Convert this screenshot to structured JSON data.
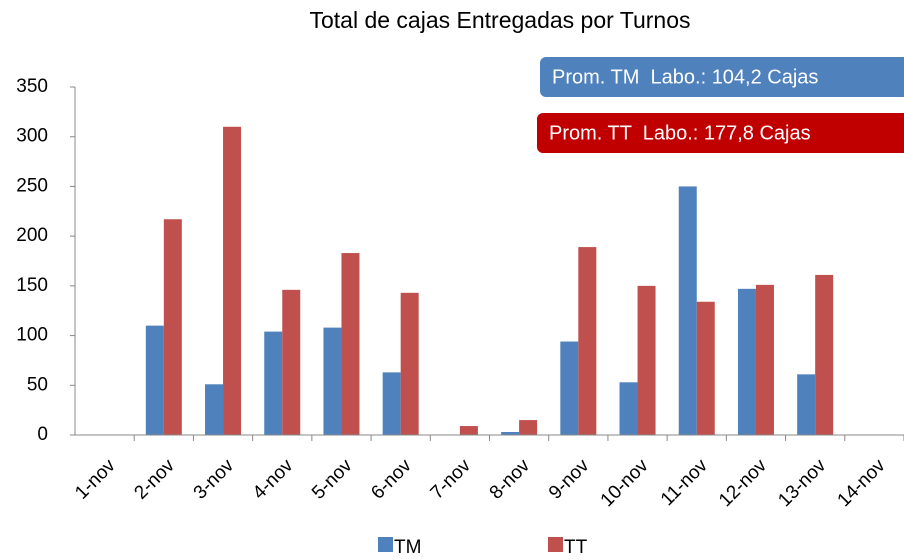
{
  "chart_data": {
    "type": "bar",
    "title": "Total de cajas Entregadas por Turnos",
    "categories": [
      "1-nov",
      "2-nov",
      "3-nov",
      "4-nov",
      "5-nov",
      "6-nov",
      "7-nov",
      "8-nov",
      "9-nov",
      "10-nov",
      "11-nov",
      "12-nov",
      "13-nov",
      "14-nov"
    ],
    "series": [
      {
        "name": "TM",
        "color": "#4f81bd",
        "values": [
          0,
          110,
          51,
          104,
          108,
          63,
          0,
          3,
          94,
          53,
          250,
          147,
          61,
          0
        ]
      },
      {
        "name": "TT",
        "color": "#c0504d",
        "values": [
          0,
          217,
          310,
          146,
          183,
          143,
          9,
          15,
          189,
          150,
          134,
          151,
          161,
          0
        ]
      }
    ],
    "ylim": [
      0,
      350
    ],
    "yticks": [
      0,
      50,
      100,
      150,
      200,
      250,
      300,
      350
    ],
    "grid": false,
    "legend": "bottom",
    "annotations": [
      {
        "text": "Prom. TM  Labo.: 104,2 Cajas",
        "color": "#4f81bd"
      },
      {
        "text": "Prom. TT  Labo.: 177,8 Cajas",
        "color": "#c00000"
      }
    ]
  }
}
